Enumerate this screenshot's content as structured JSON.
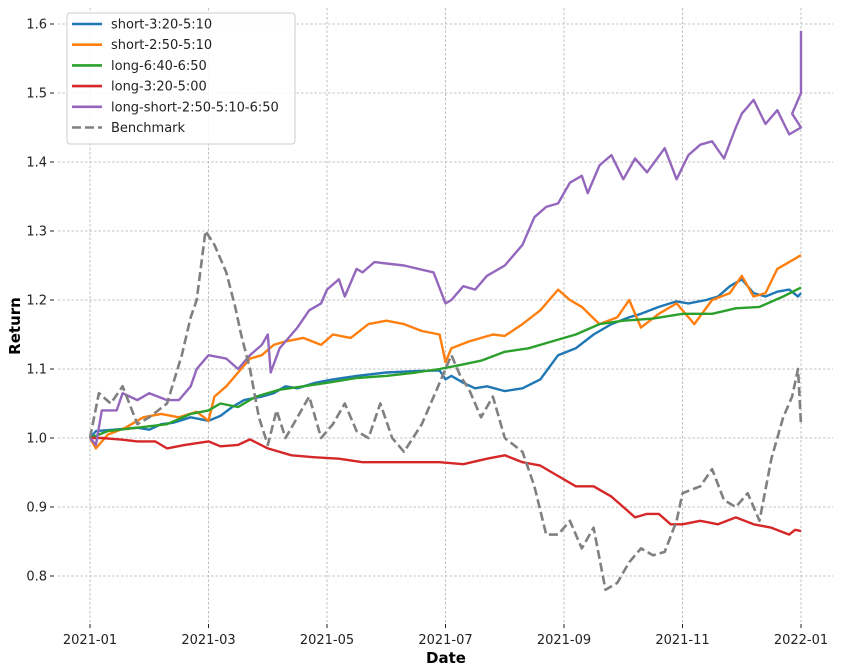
{
  "chart_data": {
    "type": "line",
    "title": "",
    "xlabel": "Date",
    "ylabel": "Return",
    "xlim": [
      "2021-01",
      "2022-01"
    ],
    "ylim": [
      0.73,
      1.625
    ],
    "grid": true,
    "legend_position": "upper left",
    "x_ticks": [
      "2021-01",
      "2021-03",
      "2021-05",
      "2021-07",
      "2021-09",
      "2021-11",
      "2022-01"
    ],
    "y_ticks": [
      "0.8",
      "0.9",
      "1.0",
      "1.1",
      "1.2",
      "1.3",
      "1.4",
      "1.5",
      "1.6"
    ],
    "x_unit": "months since 2021-01-01",
    "series": [
      {
        "name": "short-3:20-5:10",
        "color": "#1f77b4",
        "dashed": false,
        "points": [
          [
            0,
            1.0
          ],
          [
            0.1,
            1.01
          ],
          [
            0.4,
            1.012
          ],
          [
            0.8,
            1.015
          ],
          [
            1.0,
            1.012
          ],
          [
            1.2,
            1.02
          ],
          [
            1.4,
            1.022
          ],
          [
            1.7,
            1.03
          ],
          [
            2.0,
            1.025
          ],
          [
            2.2,
            1.032
          ],
          [
            2.4,
            1.045
          ],
          [
            2.6,
            1.055
          ],
          [
            2.9,
            1.06
          ],
          [
            3.1,
            1.065
          ],
          [
            3.3,
            1.075
          ],
          [
            3.5,
            1.072
          ],
          [
            3.8,
            1.08
          ],
          [
            4.1,
            1.085
          ],
          [
            4.5,
            1.09
          ],
          [
            5.0,
            1.095
          ],
          [
            5.5,
            1.097
          ],
          [
            5.9,
            1.098
          ],
          [
            6.0,
            1.085
          ],
          [
            6.1,
            1.09
          ],
          [
            6.3,
            1.08
          ],
          [
            6.5,
            1.072
          ],
          [
            6.7,
            1.075
          ],
          [
            7.0,
            1.068
          ],
          [
            7.3,
            1.072
          ],
          [
            7.6,
            1.085
          ],
          [
            7.9,
            1.12
          ],
          [
            8.2,
            1.13
          ],
          [
            8.5,
            1.15
          ],
          [
            8.8,
            1.165
          ],
          [
            9.1,
            1.175
          ],
          [
            9.3,
            1.18
          ],
          [
            9.6,
            1.19
          ],
          [
            9.9,
            1.198
          ],
          [
            10.1,
            1.195
          ],
          [
            10.4,
            1.2
          ],
          [
            10.6,
            1.205
          ],
          [
            10.8,
            1.22
          ],
          [
            11.0,
            1.23
          ],
          [
            11.2,
            1.21
          ],
          [
            11.4,
            1.205
          ],
          [
            11.6,
            1.212
          ],
          [
            11.8,
            1.215
          ],
          [
            11.95,
            1.205
          ],
          [
            12.0,
            1.21
          ]
        ]
      },
      {
        "name": "short-2:50-5:10",
        "color": "#ff7f0e",
        "dashed": false,
        "points": [
          [
            0,
            1.0
          ],
          [
            0.1,
            0.985
          ],
          [
            0.3,
            1.005
          ],
          [
            0.6,
            1.015
          ],
          [
            0.9,
            1.03
          ],
          [
            1.2,
            1.035
          ],
          [
            1.5,
            1.03
          ],
          [
            1.8,
            1.038
          ],
          [
            2.0,
            1.025
          ],
          [
            2.1,
            1.06
          ],
          [
            2.3,
            1.075
          ],
          [
            2.5,
            1.095
          ],
          [
            2.7,
            1.115
          ],
          [
            2.9,
            1.12
          ],
          [
            3.1,
            1.135
          ],
          [
            3.3,
            1.14
          ],
          [
            3.6,
            1.145
          ],
          [
            3.9,
            1.135
          ],
          [
            4.1,
            1.15
          ],
          [
            4.4,
            1.145
          ],
          [
            4.7,
            1.165
          ],
          [
            5.0,
            1.17
          ],
          [
            5.3,
            1.165
          ],
          [
            5.6,
            1.155
          ],
          [
            5.9,
            1.15
          ],
          [
            6.0,
            1.11
          ],
          [
            6.1,
            1.13
          ],
          [
            6.4,
            1.14
          ],
          [
            6.8,
            1.15
          ],
          [
            7.0,
            1.148
          ],
          [
            7.3,
            1.165
          ],
          [
            7.6,
            1.185
          ],
          [
            7.9,
            1.215
          ],
          [
            8.1,
            1.2
          ],
          [
            8.3,
            1.19
          ],
          [
            8.6,
            1.165
          ],
          [
            8.9,
            1.175
          ],
          [
            9.1,
            1.2
          ],
          [
            9.3,
            1.16
          ],
          [
            9.6,
            1.18
          ],
          [
            9.9,
            1.195
          ],
          [
            10.2,
            1.165
          ],
          [
            10.5,
            1.2
          ],
          [
            10.8,
            1.21
          ],
          [
            11.0,
            1.235
          ],
          [
            11.2,
            1.205
          ],
          [
            11.4,
            1.21
          ],
          [
            11.6,
            1.245
          ],
          [
            11.8,
            1.255
          ],
          [
            12.0,
            1.265
          ]
        ]
      },
      {
        "name": "long-6:40-6:50",
        "color": "#2ca02c",
        "dashed": false,
        "points": [
          [
            0,
            1.0
          ],
          [
            0.3,
            1.01
          ],
          [
            0.8,
            1.015
          ],
          [
            1.3,
            1.02
          ],
          [
            1.7,
            1.035
          ],
          [
            2.0,
            1.04
          ],
          [
            2.2,
            1.05
          ],
          [
            2.5,
            1.045
          ],
          [
            2.8,
            1.06
          ],
          [
            3.2,
            1.07
          ],
          [
            3.6,
            1.075
          ],
          [
            4.0,
            1.08
          ],
          [
            4.5,
            1.087
          ],
          [
            5.0,
            1.09
          ],
          [
            5.5,
            1.095
          ],
          [
            5.9,
            1.1
          ],
          [
            6.2,
            1.105
          ],
          [
            6.6,
            1.112
          ],
          [
            7.0,
            1.125
          ],
          [
            7.4,
            1.13
          ],
          [
            7.8,
            1.14
          ],
          [
            8.2,
            1.15
          ],
          [
            8.6,
            1.165
          ],
          [
            9.0,
            1.17
          ],
          [
            9.5,
            1.173
          ],
          [
            10.0,
            1.18
          ],
          [
            10.5,
            1.18
          ],
          [
            10.9,
            1.188
          ],
          [
            11.3,
            1.19
          ],
          [
            11.7,
            1.205
          ],
          [
            12.0,
            1.218
          ]
        ]
      },
      {
        "name": "long-3:20-5:00",
        "color": "#d62728",
        "dashed": false,
        "points": [
          [
            0,
            1.0
          ],
          [
            0.2,
            1.0
          ],
          [
            0.5,
            0.998
          ],
          [
            0.8,
            0.995
          ],
          [
            1.1,
            0.995
          ],
          [
            1.3,
            0.985
          ],
          [
            1.6,
            0.99
          ],
          [
            2.0,
            0.995
          ],
          [
            2.2,
            0.988
          ],
          [
            2.5,
            0.99
          ],
          [
            2.7,
            0.998
          ],
          [
            3.0,
            0.985
          ],
          [
            3.4,
            0.975
          ],
          [
            3.8,
            0.972
          ],
          [
            4.2,
            0.97
          ],
          [
            4.6,
            0.965
          ],
          [
            5.0,
            0.965
          ],
          [
            5.5,
            0.965
          ],
          [
            5.9,
            0.965
          ],
          [
            6.3,
            0.962
          ],
          [
            6.7,
            0.97
          ],
          [
            7.0,
            0.975
          ],
          [
            7.3,
            0.965
          ],
          [
            7.6,
            0.96
          ],
          [
            7.9,
            0.945
          ],
          [
            8.2,
            0.93
          ],
          [
            8.5,
            0.93
          ],
          [
            8.8,
            0.915
          ],
          [
            9.0,
            0.9
          ],
          [
            9.2,
            0.885
          ],
          [
            9.4,
            0.89
          ],
          [
            9.6,
            0.89
          ],
          [
            9.8,
            0.875
          ],
          [
            10.0,
            0.875
          ],
          [
            10.3,
            0.88
          ],
          [
            10.6,
            0.875
          ],
          [
            10.9,
            0.885
          ],
          [
            11.2,
            0.875
          ],
          [
            11.5,
            0.87
          ],
          [
            11.8,
            0.86
          ],
          [
            11.9,
            0.867
          ],
          [
            12.0,
            0.865
          ]
        ]
      },
      {
        "name": "long-short-2:50-5:10-6:50",
        "color": "#9467bd",
        "dashed": false,
        "points": [
          [
            0,
            1.0
          ],
          [
            0.1,
            0.99
          ],
          [
            0.2,
            1.04
          ],
          [
            0.45,
            1.04
          ],
          [
            0.55,
            1.065
          ],
          [
            0.8,
            1.055
          ],
          [
            1.0,
            1.065
          ],
          [
            1.3,
            1.055
          ],
          [
            1.5,
            1.055
          ],
          [
            1.7,
            1.075
          ],
          [
            1.8,
            1.1
          ],
          [
            2.0,
            1.12
          ],
          [
            2.3,
            1.115
          ],
          [
            2.5,
            1.1
          ],
          [
            2.7,
            1.12
          ],
          [
            2.9,
            1.135
          ],
          [
            3.0,
            1.15
          ],
          [
            3.05,
            1.095
          ],
          [
            3.2,
            1.13
          ],
          [
            3.5,
            1.16
          ],
          [
            3.7,
            1.185
          ],
          [
            3.9,
            1.195
          ],
          [
            4.0,
            1.215
          ],
          [
            4.2,
            1.23
          ],
          [
            4.3,
            1.205
          ],
          [
            4.5,
            1.245
          ],
          [
            4.6,
            1.24
          ],
          [
            4.8,
            1.255
          ],
          [
            5.3,
            1.25
          ],
          [
            5.8,
            1.24
          ],
          [
            6.0,
            1.195
          ],
          [
            6.1,
            1.2
          ],
          [
            6.3,
            1.22
          ],
          [
            6.5,
            1.215
          ],
          [
            6.7,
            1.235
          ],
          [
            7.0,
            1.25
          ],
          [
            7.3,
            1.28
          ],
          [
            7.5,
            1.32
          ],
          [
            7.7,
            1.335
          ],
          [
            7.9,
            1.34
          ],
          [
            8.1,
            1.37
          ],
          [
            8.3,
            1.38
          ],
          [
            8.4,
            1.355
          ],
          [
            8.6,
            1.395
          ],
          [
            8.8,
            1.41
          ],
          [
            9.0,
            1.375
          ],
          [
            9.2,
            1.405
          ],
          [
            9.4,
            1.385
          ],
          [
            9.7,
            1.42
          ],
          [
            9.9,
            1.375
          ],
          [
            10.1,
            1.41
          ],
          [
            10.3,
            1.425
          ],
          [
            10.5,
            1.43
          ],
          [
            10.7,
            1.405
          ],
          [
            10.9,
            1.45
          ],
          [
            11.0,
            1.47
          ],
          [
            11.2,
            1.49
          ],
          [
            11.4,
            1.455
          ],
          [
            11.6,
            1.475
          ],
          [
            11.8,
            1.44
          ],
          [
            12.0,
            1.45
          ],
          [
            11.85,
            1.47
          ],
          [
            12.0,
            1.5
          ],
          [
            12.0,
            1.59
          ]
        ]
      },
      {
        "name": "Benchmark",
        "color": "#808080",
        "dashed": true,
        "points": [
          [
            0,
            1.0
          ],
          [
            0.15,
            1.065
          ],
          [
            0.35,
            1.05
          ],
          [
            0.55,
            1.075
          ],
          [
            0.8,
            1.02
          ],
          [
            1.0,
            1.03
          ],
          [
            1.3,
            1.05
          ],
          [
            1.55,
            1.12
          ],
          [
            1.7,
            1.175
          ],
          [
            1.8,
            1.2
          ],
          [
            1.95,
            1.3
          ],
          [
            2.1,
            1.28
          ],
          [
            2.3,
            1.24
          ],
          [
            2.45,
            1.19
          ],
          [
            2.55,
            1.15
          ],
          [
            2.7,
            1.1
          ],
          [
            2.85,
            1.03
          ],
          [
            3.0,
            0.99
          ],
          [
            3.15,
            1.04
          ],
          [
            3.3,
            1.0
          ],
          [
            3.5,
            1.03
          ],
          [
            3.7,
            1.06
          ],
          [
            3.9,
            1.0
          ],
          [
            4.1,
            1.02
          ],
          [
            4.3,
            1.05
          ],
          [
            4.5,
            1.01
          ],
          [
            4.7,
            1.0
          ],
          [
            4.9,
            1.05
          ],
          [
            5.1,
            1.0
          ],
          [
            5.3,
            0.98
          ],
          [
            5.6,
            1.02
          ],
          [
            5.9,
            1.08
          ],
          [
            6.1,
            1.12
          ],
          [
            6.25,
            1.09
          ],
          [
            6.4,
            1.07
          ],
          [
            6.6,
            1.03
          ],
          [
            6.8,
            1.06
          ],
          [
            7.0,
            1.0
          ],
          [
            7.3,
            0.98
          ],
          [
            7.5,
            0.93
          ],
          [
            7.7,
            0.86
          ],
          [
            7.9,
            0.86
          ],
          [
            8.1,
            0.88
          ],
          [
            8.3,
            0.84
          ],
          [
            8.5,
            0.87
          ],
          [
            8.7,
            0.78
          ],
          [
            8.9,
            0.79
          ],
          [
            9.1,
            0.82
          ],
          [
            9.3,
            0.84
          ],
          [
            9.5,
            0.83
          ],
          [
            9.7,
            0.835
          ],
          [
            9.9,
            0.88
          ],
          [
            10.0,
            0.92
          ],
          [
            10.3,
            0.93
          ],
          [
            10.5,
            0.955
          ],
          [
            10.7,
            0.91
          ],
          [
            10.9,
            0.9
          ],
          [
            11.1,
            0.92
          ],
          [
            11.3,
            0.88
          ],
          [
            11.5,
            0.97
          ],
          [
            11.7,
            1.03
          ],
          [
            11.85,
            1.06
          ],
          [
            11.95,
            1.1
          ],
          [
            12.0,
            1.02
          ]
        ]
      }
    ]
  }
}
